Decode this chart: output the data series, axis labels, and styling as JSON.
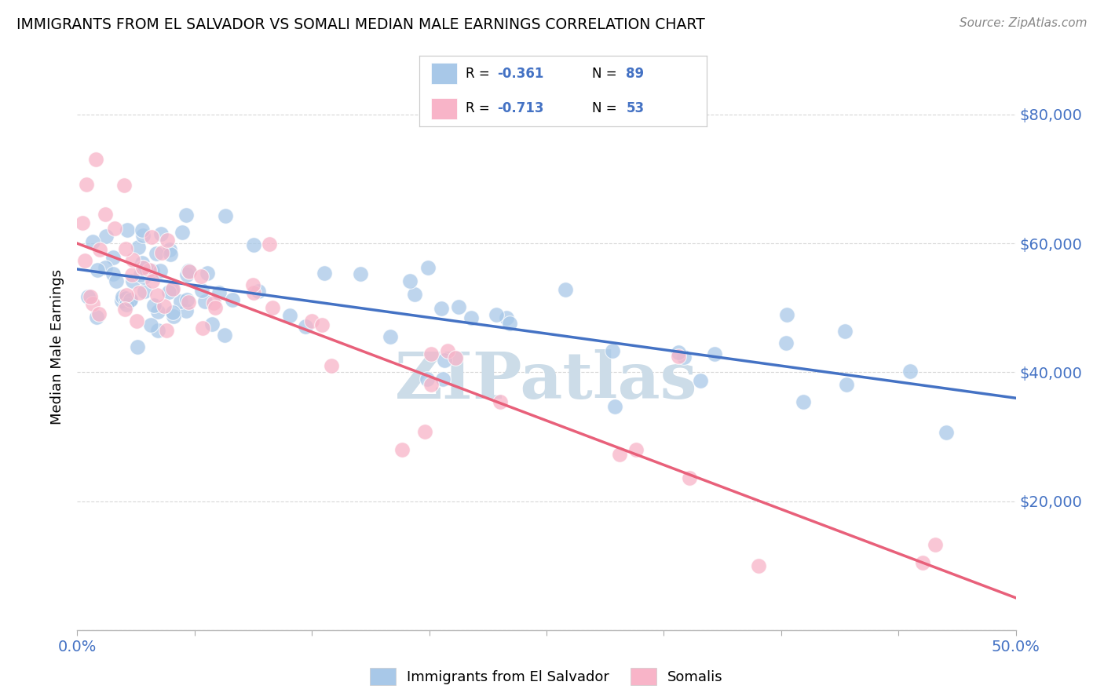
{
  "title": "IMMIGRANTS FROM EL SALVADOR VS SOMALI MEDIAN MALE EARNINGS CORRELATION CHART",
  "source": "Source: ZipAtlas.com",
  "ylabel": "Median Male Earnings",
  "yticks": [
    0,
    20000,
    40000,
    60000,
    80000
  ],
  "ytick_labels": [
    "",
    "$20,000",
    "$40,000",
    "$60,000",
    "$80,000"
  ],
  "xlim": [
    0.0,
    0.5
  ],
  "ylim": [
    0,
    88000
  ],
  "blue_color": "#a8c8e8",
  "pink_color": "#f8b4c8",
  "blue_line_color": "#4472c4",
  "pink_line_color": "#e8607a",
  "blue_R": -0.361,
  "blue_N": 89,
  "pink_R": -0.713,
  "pink_N": 53,
  "legend_label_blue": "Immigrants from El Salvador",
  "legend_label_pink": "Somalis",
  "watermark": "ZIPatlas",
  "blue_line_x": [
    0.0,
    0.5
  ],
  "blue_line_y": [
    56000,
    36000
  ],
  "pink_line_x": [
    0.0,
    0.5
  ],
  "pink_line_y": [
    60000,
    5000
  ],
  "grid_color": "#d8d8d8",
  "watermark_color": "#ccdce8",
  "background_color": "#ffffff",
  "xtick_positions": [
    0.0,
    0.0625,
    0.125,
    0.1875,
    0.25,
    0.3125,
    0.375,
    0.4375,
    0.5
  ]
}
